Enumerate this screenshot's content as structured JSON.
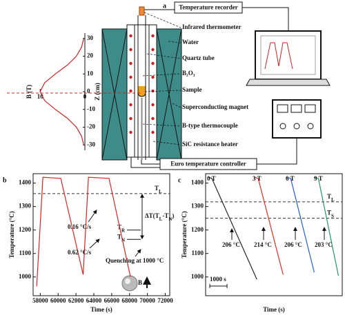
{
  "panel_labels": [
    "a",
    "b",
    "c"
  ],
  "diagram": {
    "recorder": "Temperature recorder",
    "controller": "Euro temperature controller",
    "callouts": [
      "Infrared thermometer",
      "Water",
      "Quartz tube",
      "B₂O₃",
      "Sample",
      "Superconducting magnet",
      "B-type thermocouple",
      "SiC resistance heater"
    ]
  },
  "chart_data": [
    {
      "type": "line",
      "x_label": "B (T)",
      "y_label": "Z (cm)",
      "xlim": [
        10.5,
        0
      ],
      "xticks": [
        10,
        0
      ],
      "ylim": [
        -33,
        33
      ],
      "yticks": [
        30,
        20,
        10,
        0,
        -10,
        -20,
        -30
      ],
      "series": [
        {
          "color": "#d02020",
          "x": [
            0.24,
            0.76,
            1.9,
            3.9,
            6.6,
            9.0,
            10,
            9.0,
            6.6,
            3.9,
            1.9,
            0.76,
            0.24
          ],
          "values": [
            -30,
            -25,
            -20,
            -15,
            -10,
            -5,
            0,
            5,
            10,
            15,
            20,
            25,
            30
          ]
        }
      ]
    },
    {
      "type": "line",
      "x_label": "Time (s)",
      "y_label": "Temperature (°C)",
      "xlim": [
        57200,
        72500
      ],
      "xticks": [
        58000,
        60000,
        62000,
        64000,
        66000,
        68000,
        70000,
        72000
      ],
      "ylim": [
        920,
        1440
      ],
      "yticks": [
        1000,
        1100,
        1200,
        1300,
        1400
      ],
      "series": [
        {
          "color": "#e02020",
          "x": [
            57600,
            58300,
            60300,
            62800,
            63400,
            65700,
            68100
          ],
          "values": [
            960,
            1425,
            1420,
            1010,
            1425,
            1420,
            1000
          ]
        }
      ],
      "reference_lines": [
        {
          "value": 1355,
          "label": [
            "T",
            {
              "sub": "L"
            }
          ]
        }
      ],
      "levels": [
        {
          "value": 1200,
          "label": [
            "T",
            {
              "sub": "R"
            }
          ]
        },
        {
          "value": 1160,
          "label": [
            "T",
            {
              "sub": "N"
            }
          ]
        }
      ],
      "delta_label": [
        "ΔT(T",
        {
          "sub": "L"
        },
        "-T",
        {
          "sub": "N"
        },
        ")"
      ],
      "annotations": [
        "0.16 °C/s",
        "0.62 °C/s",
        "Quenching at 1000 °C",
        "B"
      ]
    },
    {
      "type": "line",
      "x_label": "Time (s)",
      "y_label": "Temperature (°C)",
      "xlim": [
        0,
        7900
      ],
      "ylim": [
        920,
        1440
      ],
      "yticks": [
        1000,
        1100,
        1200,
        1300,
        1400
      ],
      "series": [
        {
          "name": "0 T",
          "color": "#222222",
          "x": [
            160,
            360,
            2960
          ],
          "values": [
            1425,
            1420,
            990
          ]
        },
        {
          "name": "3 T",
          "color": "#e8281e",
          "x": [
            2800,
            3040,
            4480
          ],
          "values": [
            1425,
            1420,
            1010
          ]
        },
        {
          "name": "6 T",
          "color": "#1f5fd0",
          "x": [
            4680,
            4920,
            6280
          ],
          "values": [
            1425,
            1420,
            1020
          ]
        },
        {
          "name": "9 T",
          "color": "#1a9a5a",
          "x": [
            6280,
            6520,
            7680
          ],
          "values": [
            1425,
            1420,
            1005
          ]
        }
      ],
      "reference_lines": [
        {
          "value": 1320,
          "label": [
            "T",
            {
              "sub": "L"
            }
          ]
        },
        {
          "value": 1250,
          "label": [
            "T",
            {
              "sub": "S"
            }
          ]
        }
      ],
      "annotations": [
        "206 °C",
        "214 °C",
        "206 °C",
        "203 °C"
      ],
      "scale_bar": {
        "value": 1000,
        "label": "1000 s"
      }
    }
  ]
}
